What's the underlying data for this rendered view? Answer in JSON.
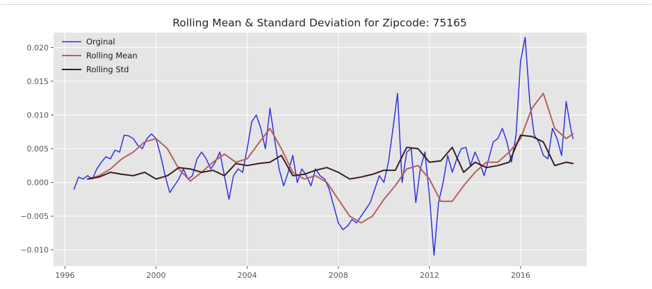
{
  "chart_data": {
    "type": "line",
    "title": "Rolling Mean & Standard Deviation for Zipcode: 75165",
    "xlabel": "",
    "ylabel": "",
    "xlim": [
      1995.5,
      2018.9
    ],
    "ylim": [
      -0.0124,
      0.0222
    ],
    "x_ticks": [
      1996,
      2000,
      2004,
      2008,
      2012,
      2016
    ],
    "y_ticks": [
      -0.01,
      -0.005,
      0.0,
      0.005,
      0.01,
      0.015,
      0.02
    ],
    "y_tick_labels": [
      "−0.010",
      "−0.005",
      "0.000",
      "0.005",
      "0.010",
      "0.015",
      "0.020"
    ],
    "grid": true,
    "legend_position": "top-left",
    "series": [
      {
        "name": "Orginal",
        "color": "#3030e0",
        "x": [
          1996.4,
          1996.6,
          1996.8,
          1997.0,
          1997.2,
          1997.4,
          1997.6,
          1997.8,
          1998.0,
          1998.2,
          1998.4,
          1998.6,
          1998.8,
          1999.0,
          1999.2,
          1999.4,
          1999.6,
          1999.8,
          2000.0,
          2000.2,
          2000.4,
          2000.6,
          2000.8,
          2001.0,
          2001.2,
          2001.4,
          2001.6,
          2001.8,
          2002.0,
          2002.2,
          2002.4,
          2002.6,
          2002.8,
          2003.0,
          2003.2,
          2003.4,
          2003.6,
          2003.8,
          2004.0,
          2004.2,
          2004.4,
          2004.6,
          2004.8,
          2005.0,
          2005.2,
          2005.4,
          2005.6,
          2005.8,
          2006.0,
          2006.2,
          2006.4,
          2006.6,
          2006.8,
          2007.0,
          2007.2,
          2007.4,
          2007.6,
          2007.8,
          2008.0,
          2008.2,
          2008.4,
          2008.6,
          2008.8,
          2009.0,
          2009.2,
          2009.4,
          2009.6,
          2009.8,
          2010.0,
          2010.2,
          2010.4,
          2010.6,
          2010.8,
          2011.0,
          2011.2,
          2011.4,
          2011.6,
          2011.8,
          2012.0,
          2012.2,
          2012.4,
          2012.6,
          2012.8,
          2013.0,
          2013.2,
          2013.4,
          2013.6,
          2013.8,
          2014.0,
          2014.2,
          2014.4,
          2014.6,
          2014.8,
          2015.0,
          2015.2,
          2015.4,
          2015.6,
          2015.8,
          2016.0,
          2016.2,
          2016.4,
          2016.6,
          2016.8,
          2017.0,
          2017.2,
          2017.4,
          2017.6,
          2017.8,
          2018.0,
          2018.2,
          2018.3
        ],
        "values": [
          -0.001,
          0.0008,
          0.0005,
          0.001,
          0.0005,
          0.002,
          0.003,
          0.0038,
          0.0035,
          0.0048,
          0.0045,
          0.007,
          0.0069,
          0.0065,
          0.0055,
          0.005,
          0.0065,
          0.0072,
          0.0065,
          0.004,
          0.001,
          -0.0015,
          -0.0005,
          0.0005,
          0.002,
          0.0005,
          0.001,
          0.0035,
          0.0045,
          0.0035,
          0.002,
          0.003,
          0.0045,
          0.001,
          -0.0025,
          0.001,
          0.002,
          0.0015,
          0.005,
          0.009,
          0.01,
          0.008,
          0.005,
          0.011,
          0.0065,
          0.002,
          -0.0005,
          0.0015,
          0.004,
          0.0,
          0.002,
          0.001,
          -0.0005,
          0.002,
          0.001,
          0.0005,
          -0.001,
          -0.0035,
          -0.006,
          -0.007,
          -0.0065,
          -0.0055,
          -0.006,
          -0.005,
          -0.004,
          -0.003,
          -0.001,
          0.001,
          0.0,
          0.003,
          0.008,
          0.0132,
          0.0,
          0.0045,
          0.005,
          -0.003,
          0.002,
          0.0045,
          -0.002,
          -0.0108,
          -0.003,
          0.0,
          0.004,
          0.0015,
          0.0035,
          0.005,
          0.0052,
          0.0025,
          0.0045,
          0.003,
          0.001,
          0.0035,
          0.006,
          0.0065,
          0.008,
          0.006,
          0.003,
          0.007,
          0.018,
          0.0215,
          0.012,
          0.007,
          0.006,
          0.004,
          0.0035,
          0.008,
          0.0065,
          0.004,
          0.012,
          0.008,
          0.0065
        ]
      },
      {
        "name": "Rolling Mean",
        "color": "#b5605a",
        "x": [
          1997.0,
          1997.5,
          1998.0,
          1998.5,
          1999.0,
          1999.5,
          2000.0,
          2000.5,
          2001.0,
          2001.5,
          2002.0,
          2002.5,
          2003.0,
          2003.5,
          2004.0,
          2004.5,
          2005.0,
          2005.5,
          2006.0,
          2006.5,
          2007.0,
          2007.5,
          2008.0,
          2008.5,
          2009.0,
          2009.5,
          2010.0,
          2010.5,
          2011.0,
          2011.5,
          2012.0,
          2012.5,
          2013.0,
          2013.5,
          2014.0,
          2014.5,
          2015.0,
          2015.5,
          2016.0,
          2016.5,
          2017.0,
          2017.5,
          2018.0,
          2018.3
        ],
        "values": [
          0.0005,
          0.001,
          0.002,
          0.0035,
          0.0045,
          0.006,
          0.0065,
          0.005,
          0.002,
          0.0002,
          0.0015,
          0.003,
          0.0042,
          0.003,
          0.0035,
          0.0058,
          0.008,
          0.005,
          0.0015,
          0.0005,
          0.001,
          0.0,
          -0.0025,
          -0.005,
          -0.006,
          -0.005,
          -0.0025,
          -0.0005,
          0.002,
          0.0025,
          0.0005,
          -0.0028,
          -0.0028,
          -0.0005,
          0.0015,
          0.003,
          0.003,
          0.0045,
          0.0065,
          0.011,
          0.0132,
          0.008,
          0.0065,
          0.0072
        ]
      },
      {
        "name": "Rolling Std",
        "color": "#3a1c1c",
        "x": [
          1997.0,
          1997.5,
          1998.0,
          1998.5,
          1999.0,
          1999.5,
          2000.0,
          2000.5,
          2001.0,
          2001.5,
          2002.0,
          2002.5,
          2003.0,
          2003.5,
          2004.0,
          2004.5,
          2005.0,
          2005.5,
          2006.0,
          2006.5,
          2007.0,
          2007.5,
          2008.0,
          2008.5,
          2009.0,
          2009.5,
          2010.0,
          2010.5,
          2011.0,
          2011.5,
          2012.0,
          2012.5,
          2013.0,
          2013.5,
          2014.0,
          2014.5,
          2015.0,
          2015.5,
          2016.0,
          2016.5,
          2017.0,
          2017.5,
          2018.0,
          2018.3
        ],
        "values": [
          0.0005,
          0.0008,
          0.0015,
          0.0012,
          0.001,
          0.0015,
          0.0005,
          0.001,
          0.0022,
          0.002,
          0.0015,
          0.0018,
          0.001,
          0.0028,
          0.0025,
          0.0028,
          0.003,
          0.004,
          0.001,
          0.0012,
          0.0018,
          0.0022,
          0.0015,
          0.0005,
          0.0008,
          0.0012,
          0.0018,
          0.0018,
          0.0052,
          0.005,
          0.003,
          0.0032,
          0.0052,
          0.0015,
          0.003,
          0.0022,
          0.0025,
          0.003,
          0.007,
          0.0068,
          0.006,
          0.0025,
          0.003,
          0.0028
        ]
      }
    ]
  }
}
